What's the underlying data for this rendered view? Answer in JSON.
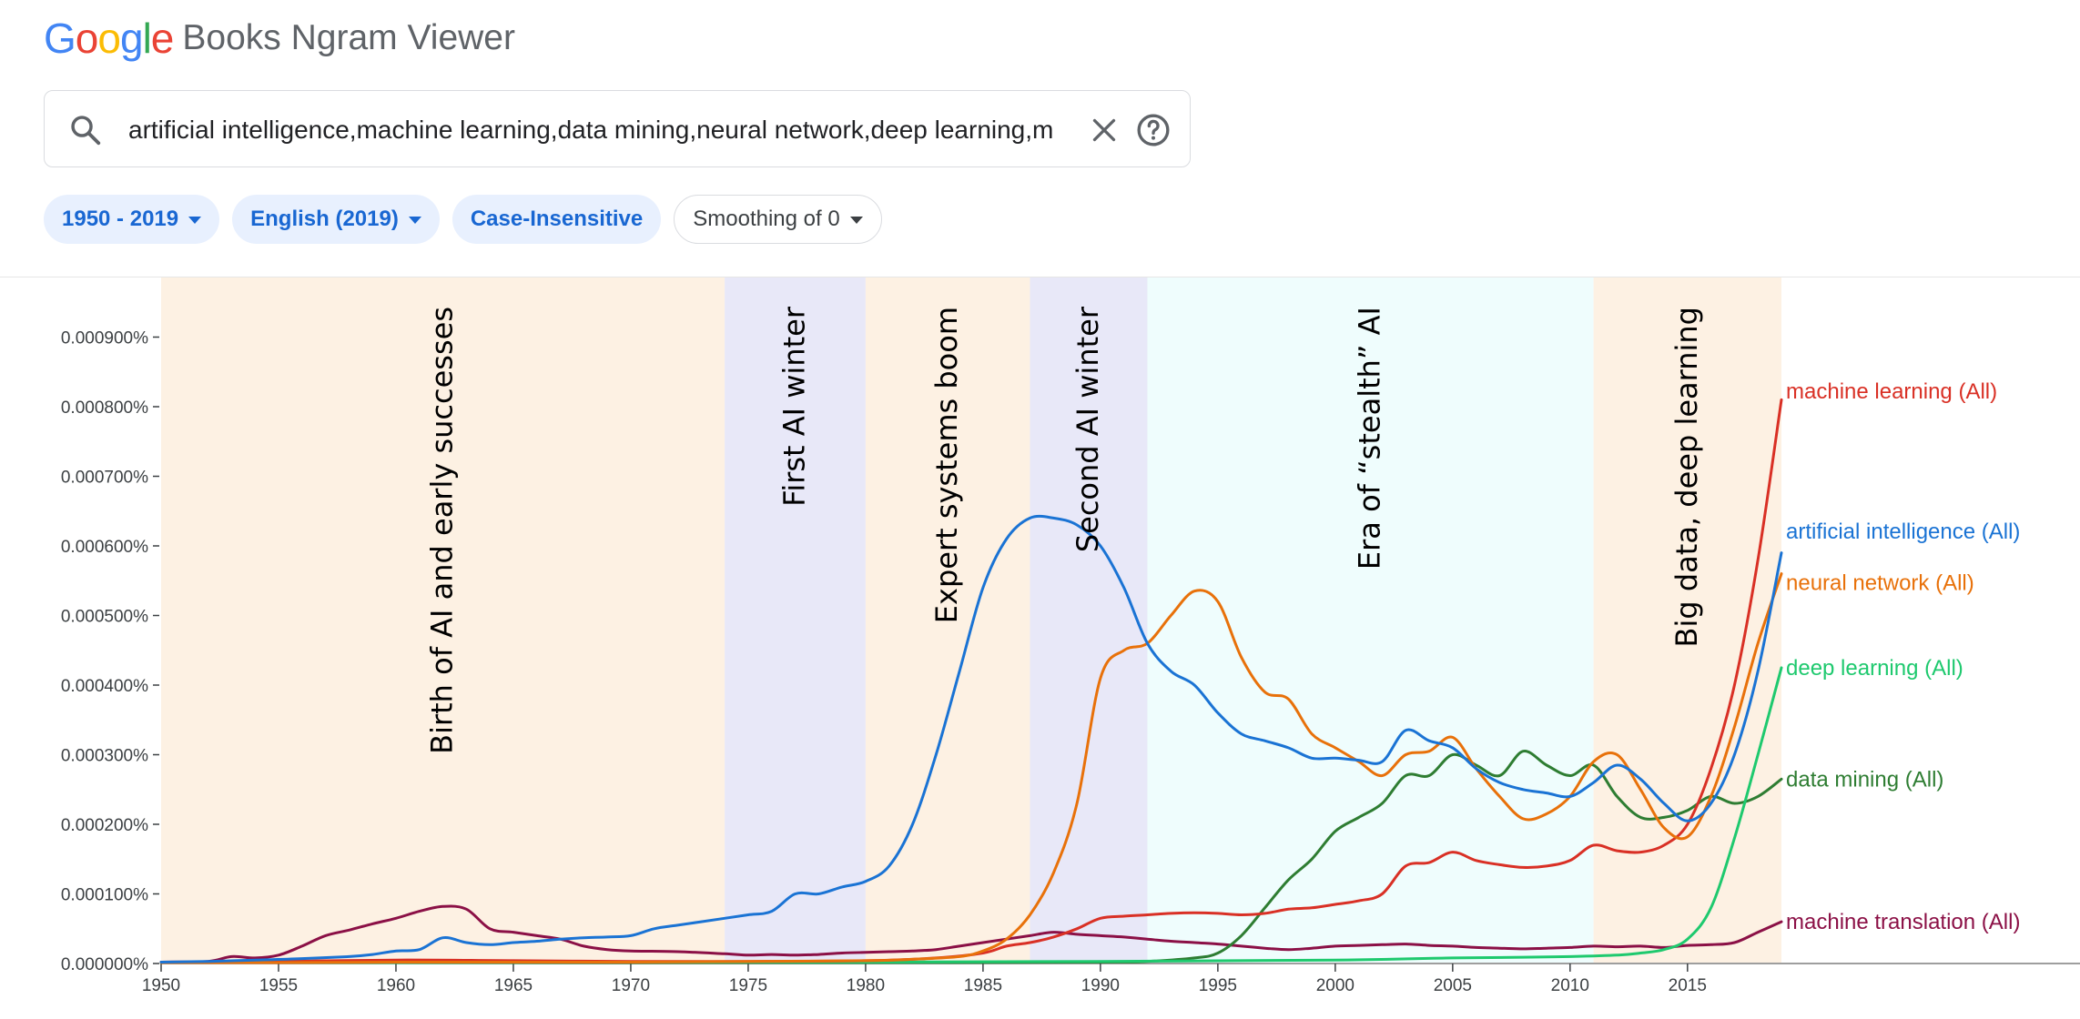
{
  "header": {
    "logo_letters": [
      {
        "char": "G",
        "color": "#4285F4"
      },
      {
        "char": "o",
        "color": "#EA4335"
      },
      {
        "char": "o",
        "color": "#FBBC05"
      },
      {
        "char": "g",
        "color": "#4285F4"
      },
      {
        "char": "l",
        "color": "#34A853"
      },
      {
        "char": "e",
        "color": "#EA4335"
      }
    ],
    "product_name": "Books Ngram Viewer"
  },
  "search": {
    "value": "artificial intelligence,machine learning,data mining,neural network,deep learning,m",
    "icon": "search-icon",
    "clear_icon": "close-icon",
    "help_icon": "help-circle-icon"
  },
  "filters": {
    "year_range": "1950 - 2019",
    "corpus": "English (2019)",
    "case": "Case-Insensitive",
    "smoothing": "Smoothing of 0"
  },
  "chart_data": {
    "type": "line",
    "xlim": [
      1950,
      2019
    ],
    "ylim": [
      0,
      0.00095
    ],
    "x_ticks": [
      1950,
      1955,
      1960,
      1965,
      1970,
      1975,
      1980,
      1985,
      1990,
      1995,
      2000,
      2005,
      2010,
      2015
    ],
    "y_ticks": [
      0,
      0.0001,
      0.0002,
      0.0003,
      0.0004,
      0.0005,
      0.0006,
      0.0007,
      0.0008,
      0.0009
    ],
    "y_tick_labels": [
      "0.000000%",
      "0.000100%",
      "0.000200%",
      "0.000300%",
      "0.000400%",
      "0.000500%",
      "0.000600%",
      "0.000700%",
      "0.000800%",
      "0.000900%"
    ],
    "grid": false,
    "eras": [
      {
        "label": "Birth of AI and early successes",
        "start": 1950,
        "end": 1974,
        "color": "#fdf1e3"
      },
      {
        "label": "First AI winter",
        "start": 1974,
        "end": 1980,
        "color": "#e8e8f8"
      },
      {
        "label": "Expert systems boom",
        "start": 1980,
        "end": 1987,
        "color": "#fdf1e3"
      },
      {
        "label": "Second AI winter",
        "start": 1987,
        "end": 1992,
        "color": "#e8e8f8"
      },
      {
        "label": "Era of “stealth” AI",
        "start": 1992,
        "end": 2011,
        "color": "#effdfd"
      },
      {
        "label": "Big data, deep learning",
        "start": 2011,
        "end": 2019,
        "color": "#fdf1e3"
      }
    ],
    "series": [
      {
        "name": "artificial intelligence (All)",
        "color": "#1a73d4",
        "x": [
          1950,
          1952,
          1954,
          1956,
          1958,
          1959,
          1960,
          1961,
          1962,
          1963,
          1964,
          1965,
          1966,
          1967,
          1968,
          1969,
          1970,
          1971,
          1972,
          1973,
          1974,
          1975,
          1976,
          1977,
          1978,
          1979,
          1980,
          1981,
          1982,
          1983,
          1984,
          1985,
          1986,
          1987,
          1988,
          1989,
          1990,
          1991,
          1992,
          1993,
          1994,
          1995,
          1996,
          1997,
          1998,
          1999,
          2000,
          2001,
          2002,
          2003,
          2004,
          2005,
          2006,
          2007,
          2008,
          2009,
          2010,
          2011,
          2012,
          2013,
          2014,
          2015,
          2016,
          2017,
          2018,
          2019
        ],
        "y": [
          2e-06,
          3e-06,
          5e-06,
          7e-06,
          1e-05,
          1.3e-05,
          1.8e-05,
          2e-05,
          3.7e-05,
          3e-05,
          2.7e-05,
          3e-05,
          3.2e-05,
          3.5e-05,
          3.7e-05,
          3.8e-05,
          4e-05,
          5e-05,
          5.5e-05,
          6e-05,
          6.5e-05,
          7e-05,
          7.5e-05,
          0.0001,
          0.0001,
          0.00011,
          0.000118,
          0.00014,
          0.0002,
          0.0003,
          0.00042,
          0.00054,
          0.00061,
          0.00064,
          0.00064,
          0.00063,
          0.0006,
          0.00054,
          0.00046,
          0.00042,
          0.0004,
          0.00036,
          0.00033,
          0.00032,
          0.00031,
          0.000295,
          0.000295,
          0.000292,
          0.00029,
          0.000335,
          0.00032,
          0.00031,
          0.00028,
          0.00026,
          0.00025,
          0.000245,
          0.00024,
          0.00026,
          0.000285,
          0.000265,
          0.00023,
          0.000205,
          0.00023,
          0.0003,
          0.00042,
          0.00059
        ]
      },
      {
        "name": "neural network (All)",
        "color": "#e8710a",
        "x": [
          1950,
          1955,
          1960,
          1965,
          1970,
          1975,
          1980,
          1982,
          1984,
          1985,
          1986,
          1987,
          1988,
          1989,
          1990,
          1991,
          1992,
          1993,
          1994,
          1995,
          1996,
          1997,
          1998,
          1999,
          2000,
          2001,
          2002,
          2003,
          2004,
          2005,
          2006,
          2007,
          2008,
          2009,
          2010,
          2011,
          2012,
          2013,
          2014,
          2015,
          2016,
          2017,
          2018,
          2019
        ],
        "y": [
          5e-07,
          1e-06,
          2e-06,
          2e-06,
          2e-06,
          3e-06,
          4e-06,
          6e-06,
          1e-05,
          1.8e-05,
          3.5e-05,
          7e-05,
          0.00013,
          0.00023,
          0.00041,
          0.00045,
          0.00046,
          0.0005,
          0.000535,
          0.00052,
          0.00044,
          0.00039,
          0.00038,
          0.00033,
          0.00031,
          0.00029,
          0.00027,
          0.0003,
          0.000305,
          0.000325,
          0.00028,
          0.00024,
          0.000208,
          0.000215,
          0.00024,
          0.00029,
          0.0003,
          0.00025,
          0.000195,
          0.000182,
          0.00024,
          0.00034,
          0.00046,
          0.00056
        ]
      },
      {
        "name": "machine learning (All)",
        "color": "#d93025",
        "x": [
          1950,
          1955,
          1960,
          1965,
          1970,
          1975,
          1980,
          1983,
          1985,
          1986,
          1987,
          1988,
          1989,
          1990,
          1991,
          1992,
          1993,
          1994,
          1995,
          1996,
          1997,
          1998,
          1999,
          2000,
          2001,
          2002,
          2003,
          2004,
          2005,
          2006,
          2007,
          2008,
          2009,
          2010,
          2011,
          2012,
          2013,
          2014,
          2015,
          2016,
          2017,
          2018,
          2019
        ],
        "y": [
          2e-06,
          3e-06,
          5e-06,
          4e-06,
          3e-06,
          3e-06,
          4e-06,
          8e-06,
          1.5e-05,
          2.5e-05,
          3e-05,
          3.8e-05,
          5e-05,
          6.5e-05,
          6.8e-05,
          7e-05,
          7.2e-05,
          7.3e-05,
          7.2e-05,
          7e-05,
          7.2e-05,
          7.8e-05,
          8e-05,
          8.5e-05,
          9e-05,
          0.0001,
          0.00014,
          0.000145,
          0.00016,
          0.000148,
          0.000142,
          0.000138,
          0.00014,
          0.000148,
          0.00017,
          0.000162,
          0.00016,
          0.00017,
          0.0002,
          0.00028,
          0.0004,
          0.00058,
          0.00081
        ]
      },
      {
        "name": "deep learning (All)",
        "color": "#1ec96e",
        "x": [
          1950,
          1960,
          1970,
          1980,
          1990,
          2000,
          2005,
          2008,
          2010,
          2012,
          2013,
          2014,
          2015,
          2016,
          2017,
          2018,
          2019
        ],
        "y": [
          1e-06,
          1e-06,
          2e-06,
          2e-06,
          3e-06,
          5e-06,
          8e-06,
          9e-06,
          1e-05,
          1.2e-05,
          1.5e-05,
          2e-05,
          3.5e-05,
          8e-05,
          0.00018,
          0.0003,
          0.000425
        ]
      },
      {
        "name": "data mining (All)",
        "color": "#2e7d32",
        "x": [
          1950,
          1970,
          1980,
          1990,
          1992,
          1994,
          1995,
          1996,
          1997,
          1998,
          1999,
          2000,
          2001,
          2002,
          2003,
          2004,
          2005,
          2006,
          2007,
          2008,
          2009,
          2010,
          2011,
          2012,
          2013,
          2014,
          2015,
          2016,
          2017,
          2018,
          2019
        ],
        "y": [
          5e-07,
          1e-06,
          1e-06,
          2e-06,
          3e-06,
          8e-06,
          1.5e-05,
          4e-05,
          8e-05,
          0.00012,
          0.00015,
          0.00019,
          0.00021,
          0.00023,
          0.00027,
          0.00027,
          0.0003,
          0.000285,
          0.00027,
          0.000305,
          0.000285,
          0.00027,
          0.000285,
          0.00024,
          0.00021,
          0.00021,
          0.00022,
          0.00024,
          0.00023,
          0.00024,
          0.000265
        ]
      },
      {
        "name": "machine translation (All)",
        "color": "#8b1046",
        "x": [
          1950,
          1952,
          1953,
          1954,
          1955,
          1956,
          1957,
          1958,
          1959,
          1960,
          1961,
          1962,
          1963,
          1964,
          1965,
          1966,
          1967,
          1968,
          1969,
          1970,
          1972,
          1974,
          1975,
          1976,
          1977,
          1978,
          1979,
          1980,
          1981,
          1982,
          1983,
          1984,
          1985,
          1986,
          1987,
          1988,
          1989,
          1990,
          1991,
          1992,
          1993,
          1994,
          1995,
          1996,
          1997,
          1998,
          1999,
          2000,
          2001,
          2002,
          2003,
          2004,
          2005,
          2006,
          2007,
          2008,
          2009,
          2010,
          2011,
          2012,
          2013,
          2014,
          2015,
          2016,
          2017,
          2018,
          2019
        ],
        "y": [
          2e-06,
          3e-06,
          1e-05,
          8e-06,
          1.2e-05,
          2.5e-05,
          4e-05,
          4.8e-05,
          5.7e-05,
          6.5e-05,
          7.5e-05,
          8.2e-05,
          7.8e-05,
          5e-05,
          4.5e-05,
          4e-05,
          3.5e-05,
          2.5e-05,
          2e-05,
          1.8e-05,
          1.7e-05,
          1.4e-05,
          1.2e-05,
          1.3e-05,
          1.2e-05,
          1.3e-05,
          1.5e-05,
          1.6e-05,
          1.7e-05,
          1.8e-05,
          2e-05,
          2.5e-05,
          3e-05,
          3.5e-05,
          4e-05,
          4.5e-05,
          4.2e-05,
          4e-05,
          3.8e-05,
          3.5e-05,
          3.2e-05,
          3e-05,
          2.8e-05,
          2.5e-05,
          2.2e-05,
          2e-05,
          2.2e-05,
          2.5e-05,
          2.6e-05,
          2.7e-05,
          2.8e-05,
          2.6e-05,
          2.5e-05,
          2.3e-05,
          2.2e-05,
          2.1e-05,
          2.2e-05,
          2.3e-05,
          2.5e-05,
          2.4e-05,
          2.5e-05,
          2.3e-05,
          2.6e-05,
          2.7e-05,
          3e-05,
          4.5e-05,
          6e-05
        ]
      }
    ]
  }
}
